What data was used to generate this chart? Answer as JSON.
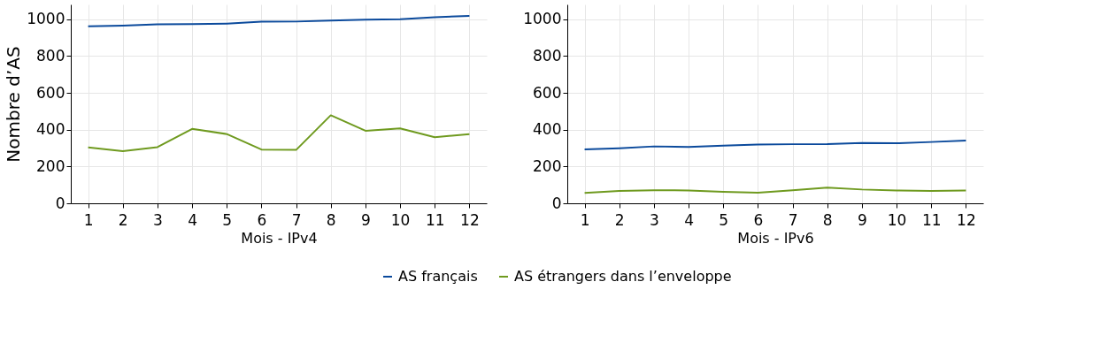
{
  "chart_data": [
    {
      "type": "line",
      "xlabel": "Mois - IPv4",
      "ylabel": "Nombre d’AS",
      "x": [
        1,
        2,
        3,
        4,
        5,
        6,
        7,
        8,
        9,
        10,
        11,
        12
      ],
      "xlim": [
        0.5,
        12.5
      ],
      "xticks": [
        1,
        2,
        3,
        4,
        5,
        6,
        7,
        8,
        9,
        10,
        11,
        12
      ],
      "ylim": [
        0,
        1080
      ],
      "yticks": [
        0,
        200,
        400,
        600,
        800,
        1000
      ],
      "grid": true,
      "legend": "bottom",
      "series": [
        {
          "name": "AS français",
          "color": "#0b4a9c",
          "values": [
            961,
            965,
            972,
            973,
            976,
            986,
            987,
            992,
            997,
            1000,
            1010,
            1018
          ]
        },
        {
          "name": "AS étrangers dans l’enveloppe",
          "color": "#6f9a1f",
          "values": [
            304,
            283,
            305,
            404,
            376,
            292,
            290,
            478,
            394,
            407,
            359,
            376
          ]
        }
      ]
    },
    {
      "type": "line",
      "xlabel": "Mois - IPv6",
      "x": [
        1,
        2,
        3,
        4,
        5,
        6,
        7,
        8,
        9,
        10,
        11,
        12
      ],
      "xlim": [
        0.5,
        12.5
      ],
      "xticks": [
        1,
        2,
        3,
        4,
        5,
        6,
        7,
        8,
        9,
        10,
        11,
        12
      ],
      "ylim": [
        0,
        1080
      ],
      "yticks": [
        0,
        200,
        400,
        600,
        800,
        1000
      ],
      "grid": true,
      "legend": "bottom",
      "series": [
        {
          "name": "AS français",
          "color": "#0b4a9c",
          "values": [
            293,
            299,
            309,
            306,
            313,
            319,
            321,
            322,
            328,
            326,
            333,
            341
          ]
        },
        {
          "name": "AS étrangers dans l’enveloppe",
          "color": "#6f9a1f",
          "values": [
            56,
            67,
            71,
            70,
            62,
            58,
            71,
            85,
            75,
            70,
            67,
            70
          ]
        }
      ]
    }
  ]
}
